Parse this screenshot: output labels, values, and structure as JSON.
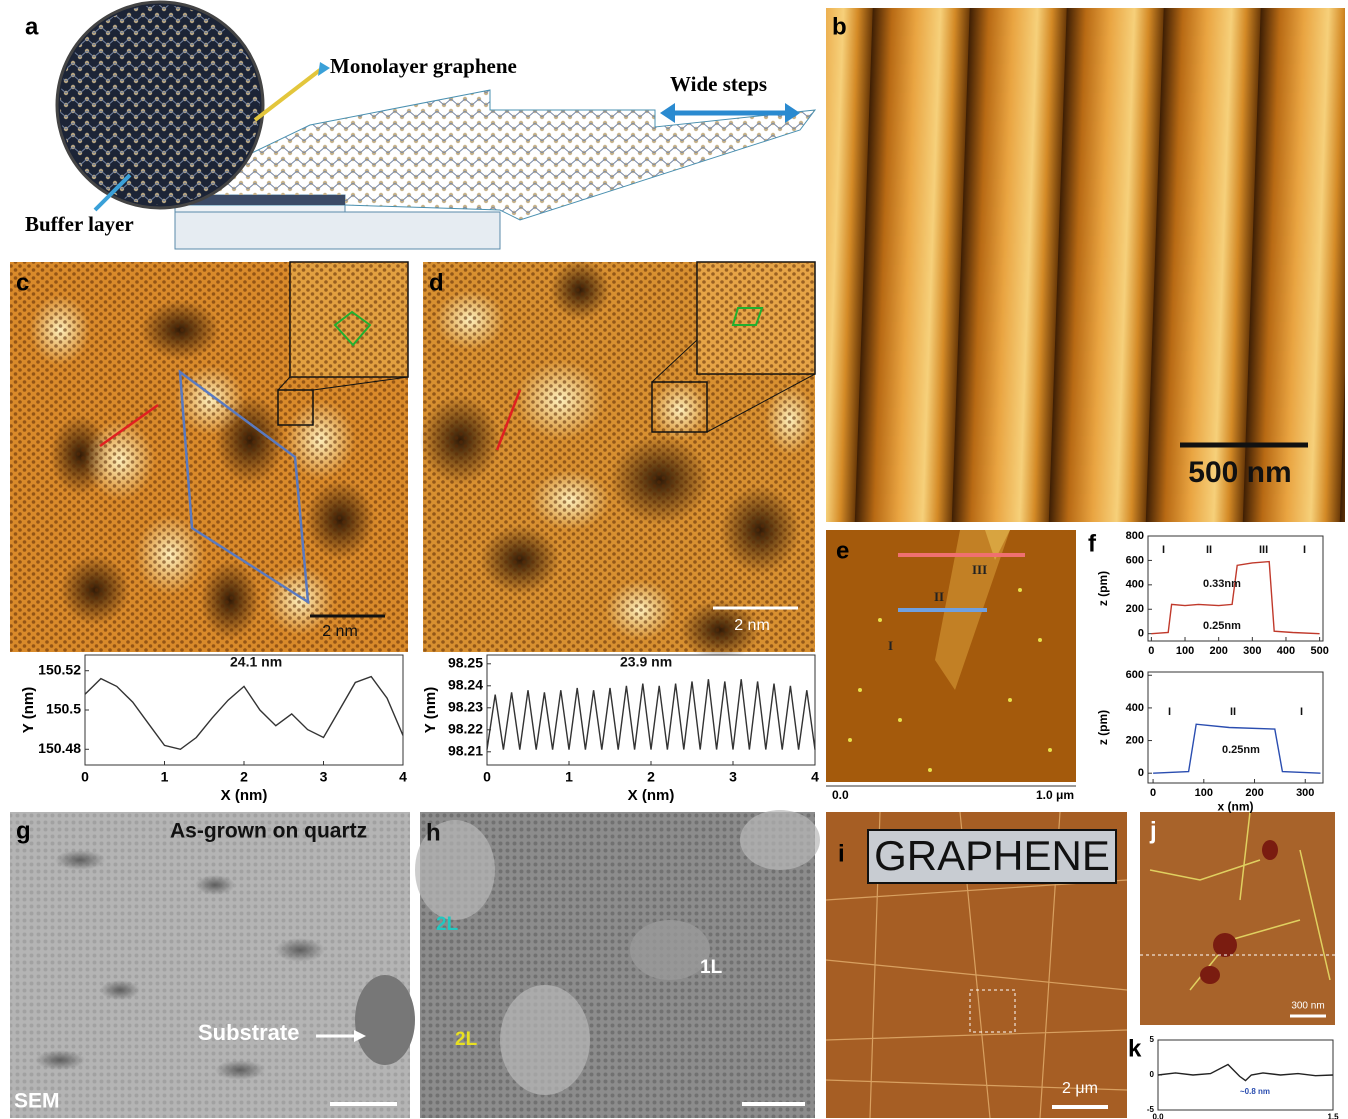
{
  "panels": {
    "a": {
      "label": "a",
      "monolayer": "Monolayer graphene",
      "steps": "Wide steps",
      "buffer": "Buffer layer"
    },
    "b": {
      "label": "b",
      "scale": "500 nm"
    },
    "c": {
      "label": "c",
      "scale": "2 nm"
    },
    "d": {
      "label": "d",
      "scale": "2 nm"
    },
    "e": {
      "label": "e",
      "regions": [
        "III",
        "II",
        "I"
      ],
      "x_start": "0.0",
      "x_end": "1.0 μm"
    },
    "f": {
      "label": "f"
    },
    "g": {
      "label": "g",
      "title": "As-grown on quartz",
      "arrow": "Substrate",
      "method": "SEM"
    },
    "h": {
      "label": "h",
      "layers": [
        "2L",
        "1L",
        "2L"
      ]
    },
    "i": {
      "label": "i",
      "word": "GRAPHENE",
      "scale": "2 μm"
    },
    "j": {
      "label": "j",
      "scale": "300 nm"
    },
    "k": {
      "label": "k"
    }
  },
  "chart_data": [
    {
      "type": "line",
      "xlabel": "X (nm)",
      "ylabel": "Y (nm)",
      "annotations": [
        "24.1 nm"
      ],
      "color": "#333333",
      "x": [
        0,
        0.2,
        0.4,
        0.6,
        0.8,
        1.0,
        1.2,
        1.4,
        1.6,
        1.8,
        2.0,
        2.2,
        2.4,
        2.6,
        2.8,
        3.0,
        3.2,
        3.4,
        3.6,
        3.8,
        4.0
      ],
      "values": [
        150.508,
        150.516,
        150.512,
        150.504,
        150.493,
        150.482,
        150.48,
        150.486,
        150.496,
        150.505,
        150.512,
        150.5,
        150.492,
        150.498,
        150.49,
        150.486,
        150.5,
        150.514,
        150.517,
        150.506,
        150.487
      ],
      "xlim": [
        0,
        4
      ],
      "ylim": [
        150.472,
        150.528
      ],
      "xticks": [
        0,
        1,
        2,
        3,
        4
      ],
      "yticks": [
        150.48,
        150.5,
        150.52
      ]
    },
    {
      "type": "line",
      "xlabel": "X (nm)",
      "ylabel": "Y (nm)",
      "annotations": [
        "23.9 nm"
      ],
      "color": "#333333",
      "x": [
        0,
        0.1,
        0.2,
        0.3,
        0.4,
        0.5,
        0.6,
        0.7,
        0.8,
        0.9,
        1.0,
        1.1,
        1.2,
        1.3,
        1.4,
        1.5,
        1.6,
        1.7,
        1.8,
        1.9,
        2.0,
        2.1,
        2.2,
        2.3,
        2.4,
        2.5,
        2.6,
        2.7,
        2.8,
        2.9,
        3.0,
        3.1,
        3.2,
        3.3,
        3.4,
        3.5,
        3.6,
        3.7,
        3.8,
        3.9,
        4.0
      ],
      "values": [
        98.211,
        98.236,
        98.211,
        98.237,
        98.211,
        98.238,
        98.211,
        98.237,
        98.211,
        98.238,
        98.211,
        98.239,
        98.211,
        98.238,
        98.211,
        98.239,
        98.211,
        98.24,
        98.211,
        98.241,
        98.211,
        98.24,
        98.211,
        98.241,
        98.211,
        98.242,
        98.211,
        98.243,
        98.211,
        98.242,
        98.211,
        98.243,
        98.211,
        98.242,
        98.211,
        98.241,
        98.211,
        98.24,
        98.211,
        98.238,
        98.211
      ],
      "xlim": [
        0,
        4
      ],
      "ylim": [
        98.204,
        98.254
      ],
      "xticks": [
        0,
        1,
        2,
        3,
        4
      ],
      "yticks": [
        98.21,
        98.22,
        98.23,
        98.24,
        98.25
      ]
    },
    {
      "type": "line",
      "ylabel": "z (pm)",
      "annotations": [
        "I",
        "II",
        "III",
        "I",
        "0.33nm",
        "0.25nm"
      ],
      "color": "#c0392b",
      "x": [
        0,
        50,
        60,
        100,
        140,
        200,
        240,
        255,
        300,
        350,
        365,
        420,
        500
      ],
      "values": [
        0,
        10,
        240,
        230,
        240,
        230,
        240,
        560,
        580,
        590,
        20,
        10,
        0
      ],
      "xlim": [
        -10,
        510
      ],
      "ylim": [
        -60,
        800
      ],
      "xticks": [
        0,
        100,
        200,
        300,
        400,
        500
      ],
      "yticks": [
        0,
        200,
        400,
        600,
        800
      ]
    },
    {
      "type": "line",
      "xlabel": "x (nm)",
      "ylabel": "z (pm)",
      "annotations": [
        "I",
        "II",
        "I",
        "0.25nm"
      ],
      "color": "#2a4db0",
      "x": [
        0,
        70,
        85,
        150,
        240,
        255,
        330
      ],
      "values": [
        0,
        10,
        300,
        280,
        270,
        10,
        0
      ],
      "xlim": [
        -10,
        335
      ],
      "ylim": [
        -60,
        620
      ],
      "xticks": [
        0,
        100,
        200,
        300
      ],
      "yticks": [
        0,
        200,
        400,
        600
      ]
    },
    {
      "type": "line",
      "annotations": [
        "~0.8 nm"
      ],
      "color": "#222222",
      "x": [
        0,
        0.15,
        0.3,
        0.45,
        0.6,
        0.7,
        0.75,
        0.8,
        0.9,
        1.05,
        1.2,
        1.35,
        1.5
      ],
      "values": [
        0,
        0.3,
        0,
        0.2,
        1.5,
        -0.2,
        -0.8,
        0,
        0.3,
        0,
        0.2,
        -0.1,
        0
      ],
      "xlim": [
        0,
        1.5
      ],
      "ylim": [
        -5,
        5
      ],
      "xticks": [
        {
          "value": 0,
          "label": "0.0"
        },
        1.5
      ],
      "yticks": [
        -5,
        0,
        5
      ]
    }
  ]
}
